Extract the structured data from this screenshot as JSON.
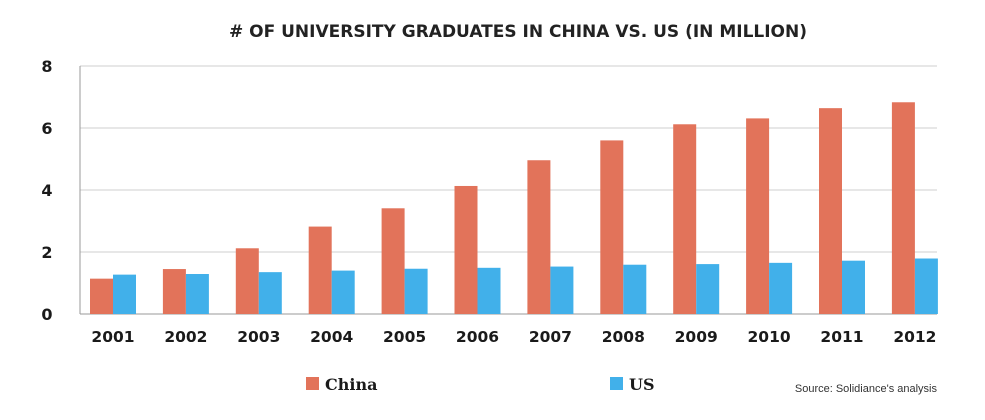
{
  "chart_data": {
    "type": "bar",
    "title": "# OF UNIVERSITY GRADUATES IN CHINA VS. US (IN MILLION)",
    "categories": [
      "2001",
      "2002",
      "2003",
      "2004",
      "2005",
      "2006",
      "2007",
      "2008",
      "2009",
      "2010",
      "2011",
      "2012"
    ],
    "series": [
      {
        "name": "China",
        "color": "#E2735A",
        "values": [
          1.14,
          1.45,
          2.12,
          2.82,
          3.41,
          4.13,
          4.96,
          5.6,
          6.12,
          6.31,
          6.64,
          6.83
        ]
      },
      {
        "name": "US",
        "color": "#41B0EA",
        "values": [
          1.27,
          1.29,
          1.35,
          1.4,
          1.46,
          1.49,
          1.53,
          1.59,
          1.61,
          1.65,
          1.72,
          1.79
        ]
      }
    ],
    "yticks": [
      "0",
      "2",
      "4",
      "6",
      "8"
    ],
    "ylim": [
      0,
      8
    ],
    "grid": true,
    "legend": "bottom",
    "xlabel": "",
    "ylabel": ""
  },
  "source": "Source: Solidiance's analysis"
}
